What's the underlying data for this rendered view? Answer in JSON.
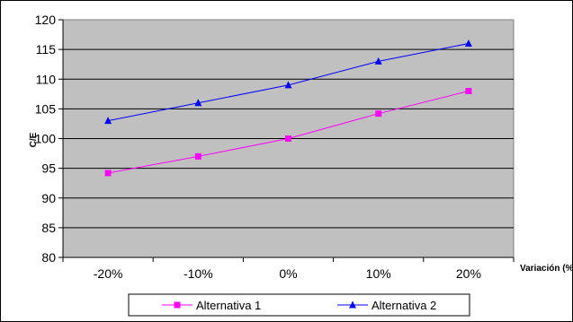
{
  "chart_data": {
    "type": "line",
    "categories": [
      "-20%",
      "-10%",
      "0%",
      "10%",
      "20%"
    ],
    "series": [
      {
        "name": "Alternativa 1",
        "values": [
          94.2,
          97,
          100,
          104.2,
          108
        ],
        "color": "#ff00ff",
        "marker": "square"
      },
      {
        "name": "Alternativa 2",
        "values": [
          103,
          106,
          109,
          113,
          116
        ],
        "color": "#0000ff",
        "marker": "triangle"
      }
    ],
    "xlabel": "Variación (%)",
    "ylabel": "C/E",
    "ylim": [
      80,
      120
    ],
    "yticks": [
      80,
      85,
      90,
      95,
      100,
      105,
      110,
      115,
      120
    ],
    "grid": true,
    "plot_background": "#c0c0c0",
    "legend_position": "bottom"
  }
}
